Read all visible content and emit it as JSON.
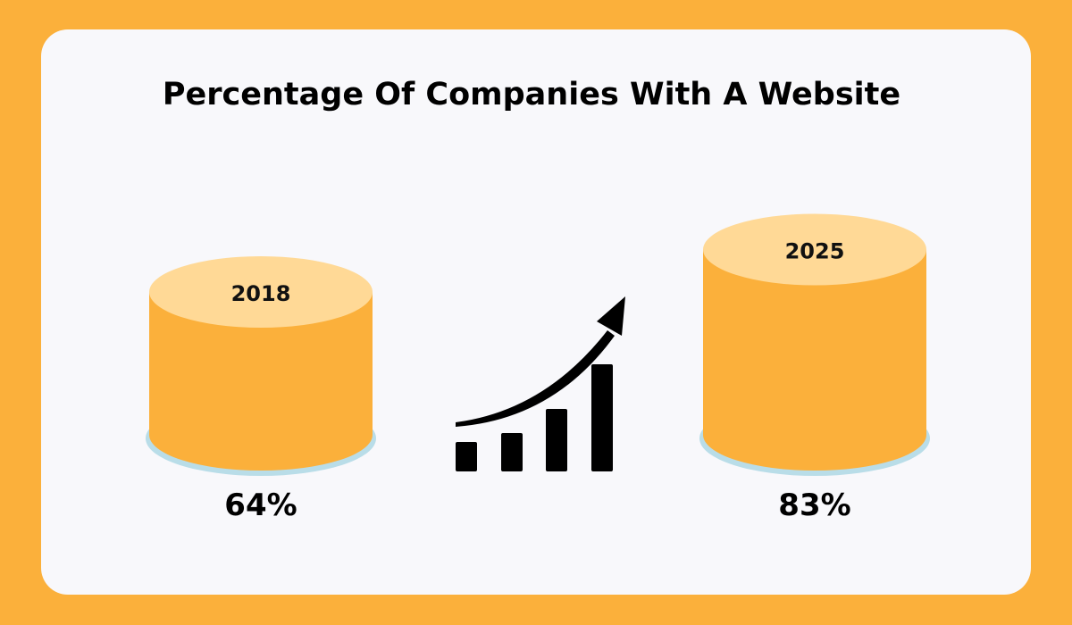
{
  "colors": {
    "frame": "#FBB03B",
    "card": "#F8F8FB",
    "cylinder_side": "#FBB03B",
    "cylinder_top": "#FFD996",
    "shadow": "#B9DDE8",
    "ink": "#000000"
  },
  "icons": [
    "growth-chart-arrow-icon"
  ],
  "chart_data": {
    "type": "bar",
    "title": "Percentage Of Companies With A Website",
    "categories": [
      "2018",
      "2025"
    ],
    "values": [
      64,
      83
    ],
    "value_labels": [
      "64%",
      "83%"
    ],
    "unit": "%",
    "style": "3d-cylinder",
    "grid": false,
    "legend": false
  }
}
